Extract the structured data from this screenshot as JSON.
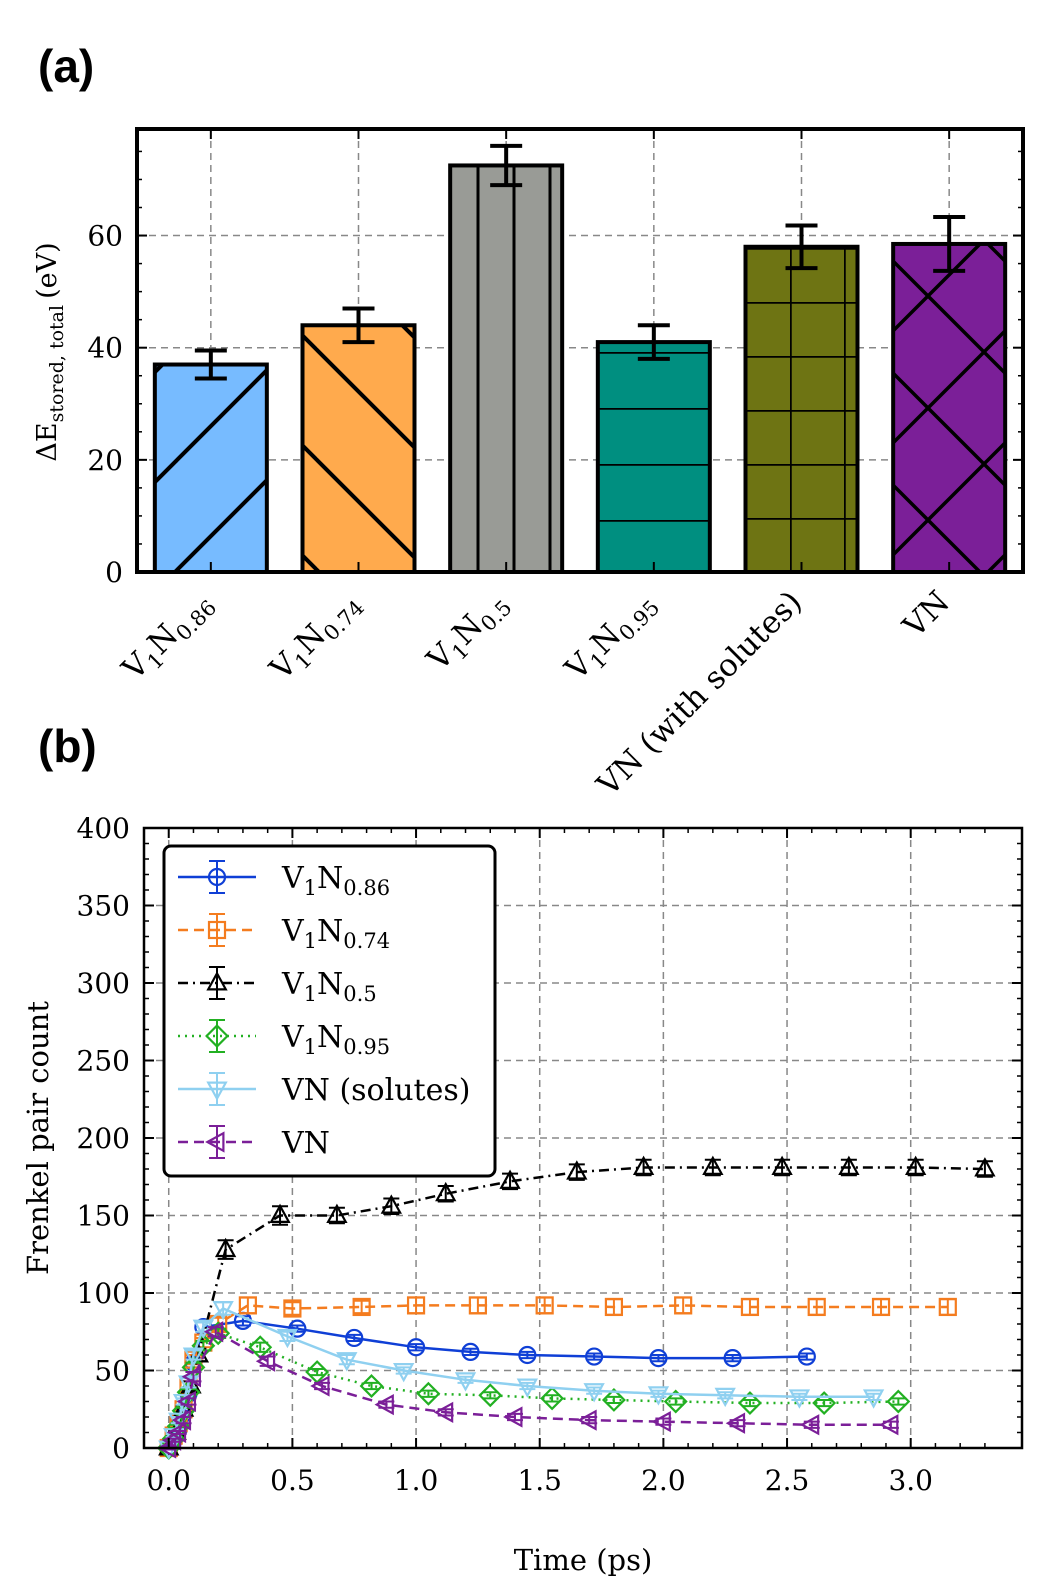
{
  "chart_data": [
    {
      "panel_label": "(a)",
      "type": "bar",
      "ylabel": {
        "prefix": "ΔE",
        "sub": "stored, total",
        "units": "(eV)"
      },
      "ylim": [
        0,
        79
      ],
      "yticks": [
        0,
        20,
        40,
        60
      ],
      "grid": true,
      "categories": [
        {
          "main": "V",
          "sub1": "1",
          "mid": "N",
          "sub2": "0.86"
        },
        {
          "main": "V",
          "sub1": "1",
          "mid": "N",
          "sub2": "0.74"
        },
        {
          "main": "V",
          "sub1": "1",
          "mid": "N",
          "sub2": "0.5"
        },
        {
          "main": "V",
          "sub1": "1",
          "mid": "N",
          "sub2": "0.95"
        },
        {
          "main": "VN (with solutes)",
          "sub1": "",
          "mid": "",
          "sub2": ""
        },
        {
          "main": "VN",
          "sub1": "",
          "mid": "",
          "sub2": ""
        }
      ],
      "values": [
        37,
        44,
        72.5,
        41,
        58,
        58.5
      ],
      "errors": [
        2.5,
        3,
        3.5,
        3,
        3.8,
        4.8
      ],
      "colors": [
        "#77bbff",
        "#ffaa4d",
        "#999b96",
        "#008f80",
        "#6e7413",
        "#7b1f98"
      ],
      "hatches": [
        "diag-up",
        "diag-down",
        "vertical",
        "horizontal",
        "grid",
        "crosshatch"
      ]
    },
    {
      "panel_label": "(b)",
      "type": "line",
      "xlabel": "Time (ps)",
      "ylabel": "Frenkel pair count",
      "xlim": [
        -0.1,
        3.45
      ],
      "ylim": [
        0,
        400
      ],
      "xticks": [
        0.0,
        0.5,
        1.0,
        1.5,
        2.0,
        2.5,
        3.0
      ],
      "yticks": [
        0,
        50,
        100,
        150,
        200,
        250,
        300,
        350,
        400
      ],
      "grid": true,
      "legend_position": "top-left",
      "series": [
        {
          "name": {
            "main": "V",
            "sub1": "1",
            "mid": "N",
            "sub2": "0.86"
          },
          "color": "#0f3fd6",
          "linestyle": "solid",
          "marker": "circle",
          "x": [
            0.0,
            0.02,
            0.04,
            0.06,
            0.08,
            0.1,
            0.14,
            0.3,
            0.52,
            0.75,
            1.0,
            1.22,
            1.45,
            1.72,
            1.98,
            2.28,
            2.58
          ],
          "y": [
            0,
            5,
            12,
            22,
            35,
            55,
            78,
            82,
            77,
            71,
            65,
            62,
            60,
            59,
            58,
            58,
            59
          ],
          "err": [
            1,
            1,
            1,
            2,
            2,
            3,
            3,
            3,
            2,
            2,
            2,
            2,
            2,
            2,
            2,
            2,
            2
          ]
        },
        {
          "name": {
            "main": "V",
            "sub1": "1",
            "mid": "N",
            "sub2": "0.74"
          },
          "color": "#f47c1f",
          "linestyle": "dashed",
          "marker": "square",
          "x": [
            0.0,
            0.02,
            0.04,
            0.06,
            0.08,
            0.1,
            0.14,
            0.2,
            0.32,
            0.5,
            0.78,
            1.0,
            1.25,
            1.52,
            1.8,
            2.08,
            2.35,
            2.62,
            2.88,
            3.15
          ],
          "y": [
            0,
            8,
            16,
            25,
            40,
            57,
            68,
            80,
            92,
            90,
            91,
            92,
            92,
            92,
            91,
            92,
            91,
            91,
            91,
            91
          ],
          "err": [
            1,
            1,
            2,
            2,
            3,
            3,
            3,
            4,
            5,
            4,
            4,
            5,
            5,
            5,
            5,
            5,
            5,
            5,
            5,
            5
          ]
        },
        {
          "name": {
            "main": "V",
            "sub1": "1",
            "mid": "N",
            "sub2": "0.5"
          },
          "color": "#000000",
          "linestyle": "dashdot",
          "marker": "triangle-up",
          "x": [
            0.0,
            0.03,
            0.06,
            0.09,
            0.12,
            0.23,
            0.45,
            0.68,
            0.9,
            1.12,
            1.38,
            1.65,
            1.92,
            2.2,
            2.48,
            2.75,
            3.02,
            3.3
          ],
          "y": [
            0,
            10,
            25,
            40,
            60,
            128,
            150,
            150,
            156,
            164,
            172,
            178,
            181,
            181,
            181,
            181,
            181,
            180
          ],
          "err": [
            1,
            1,
            2,
            3,
            4,
            6,
            6,
            5,
            5,
            5,
            5,
            5,
            5,
            5,
            5,
            5,
            5,
            5
          ]
        },
        {
          "name": {
            "main": "V",
            "sub1": "1",
            "mid": "N",
            "sub2": "0.95"
          },
          "color": "#22b022",
          "linestyle": "dotted",
          "marker": "diamond",
          "x": [
            0.0,
            0.02,
            0.04,
            0.06,
            0.08,
            0.1,
            0.14,
            0.2,
            0.37,
            0.6,
            0.82,
            1.05,
            1.3,
            1.55,
            1.8,
            2.05,
            2.35,
            2.65,
            2.95
          ],
          "y": [
            0,
            6,
            14,
            24,
            36,
            52,
            66,
            74,
            65,
            49,
            40,
            35,
            34,
            32,
            31,
            30,
            29,
            29,
            30
          ],
          "err": [
            1,
            1,
            1,
            2,
            2,
            3,
            3,
            3,
            3,
            2,
            2,
            2,
            2,
            2,
            2,
            2,
            2,
            2,
            2
          ]
        },
        {
          "name": {
            "main": "VN (solutes)",
            "sub1": "",
            "mid": "",
            "sub2": ""
          },
          "color": "#8fd0f0",
          "linestyle": "solid",
          "marker": "triangle-down",
          "x": [
            0.0,
            0.02,
            0.04,
            0.06,
            0.08,
            0.1,
            0.14,
            0.22,
            0.48,
            0.72,
            0.95,
            1.2,
            1.45,
            1.72,
            1.98,
            2.25,
            2.55,
            2.85
          ],
          "y": [
            0,
            8,
            18,
            30,
            42,
            60,
            78,
            90,
            72,
            57,
            50,
            44,
            40,
            37,
            35,
            34,
            33,
            33
          ],
          "err": [
            1,
            1,
            2,
            2,
            3,
            3,
            3,
            4,
            3,
            3,
            2,
            2,
            2,
            2,
            2,
            2,
            2,
            2
          ]
        },
        {
          "name": {
            "main": "VN",
            "sub1": "",
            "mid": "",
            "sub2": ""
          },
          "color": "#7b1f98",
          "linestyle": "dashed",
          "marker": "triangle-left",
          "x": [
            0.0,
            0.02,
            0.04,
            0.06,
            0.08,
            0.1,
            0.19,
            0.4,
            0.62,
            0.88,
            1.12,
            1.4,
            1.7,
            2.0,
            2.3,
            2.6,
            2.92
          ],
          "y": [
            0,
            5,
            10,
            18,
            30,
            46,
            75,
            56,
            40,
            28,
            23,
            20,
            18,
            17,
            16,
            15,
            15
          ],
          "err": [
            1,
            1,
            1,
            2,
            2,
            3,
            3,
            3,
            2,
            2,
            2,
            2,
            2,
            2,
            2,
            2,
            2
          ]
        }
      ]
    }
  ]
}
